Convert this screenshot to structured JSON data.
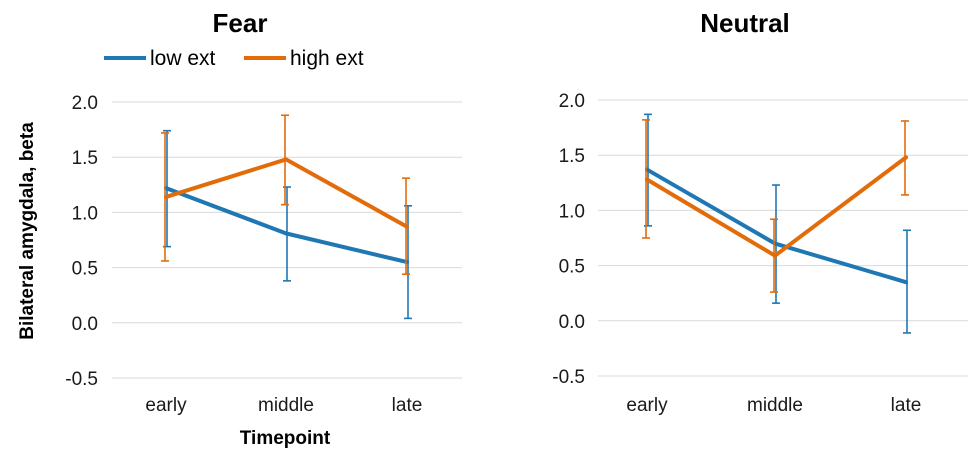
{
  "chart_data": [
    {
      "type": "line",
      "title": "Fear",
      "xlabel": "Timepoint",
      "ylabel": "Bilateral amygdala, beta",
      "categories": [
        "early",
        "middle",
        "late"
      ],
      "ylim": [
        -0.5,
        2.0
      ],
      "yticks": [
        "2.0",
        "1.5",
        "1.0",
        "0.5",
        "0.0",
        "-0.5"
      ],
      "ytick_values": [
        2.0,
        1.5,
        1.0,
        0.5,
        0.0,
        -0.5
      ],
      "grid": true,
      "legend": "top-left",
      "series": [
        {
          "name": "low ext",
          "color": "#1f77b4",
          "values": [
            1.22,
            0.81,
            0.55
          ],
          "err_low": [
            0.69,
            0.38,
            0.04
          ],
          "err_high": [
            1.74,
            1.23,
            1.06
          ]
        },
        {
          "name": "high ext",
          "color": "#e36c0a",
          "values": [
            1.14,
            1.48,
            0.87
          ],
          "err_low": [
            0.56,
            1.07,
            0.44
          ],
          "err_high": [
            1.72,
            1.88,
            1.31
          ]
        }
      ]
    },
    {
      "type": "line",
      "title": "Neutral",
      "xlabel": "",
      "ylabel": "",
      "categories": [
        "early",
        "middle",
        "late"
      ],
      "ylim": [
        -0.5,
        2.0
      ],
      "yticks": [
        "2.0",
        "1.5",
        "1.0",
        "0.5",
        "0.0",
        "-0.5"
      ],
      "ytick_values": [
        2.0,
        1.5,
        1.0,
        0.5,
        0.0,
        -0.5
      ],
      "grid": true,
      "series": [
        {
          "name": "low ext",
          "color": "#1f77b4",
          "values": [
            1.37,
            0.7,
            0.35
          ],
          "err_low": [
            0.86,
            0.16,
            -0.11
          ],
          "err_high": [
            1.87,
            1.23,
            0.82
          ]
        },
        {
          "name": "high ext",
          "color": "#e36c0a",
          "values": [
            1.28,
            0.59,
            1.48
          ],
          "err_low": [
            0.75,
            0.26,
            1.14
          ],
          "err_high": [
            1.82,
            0.92,
            1.81
          ]
        }
      ]
    }
  ]
}
